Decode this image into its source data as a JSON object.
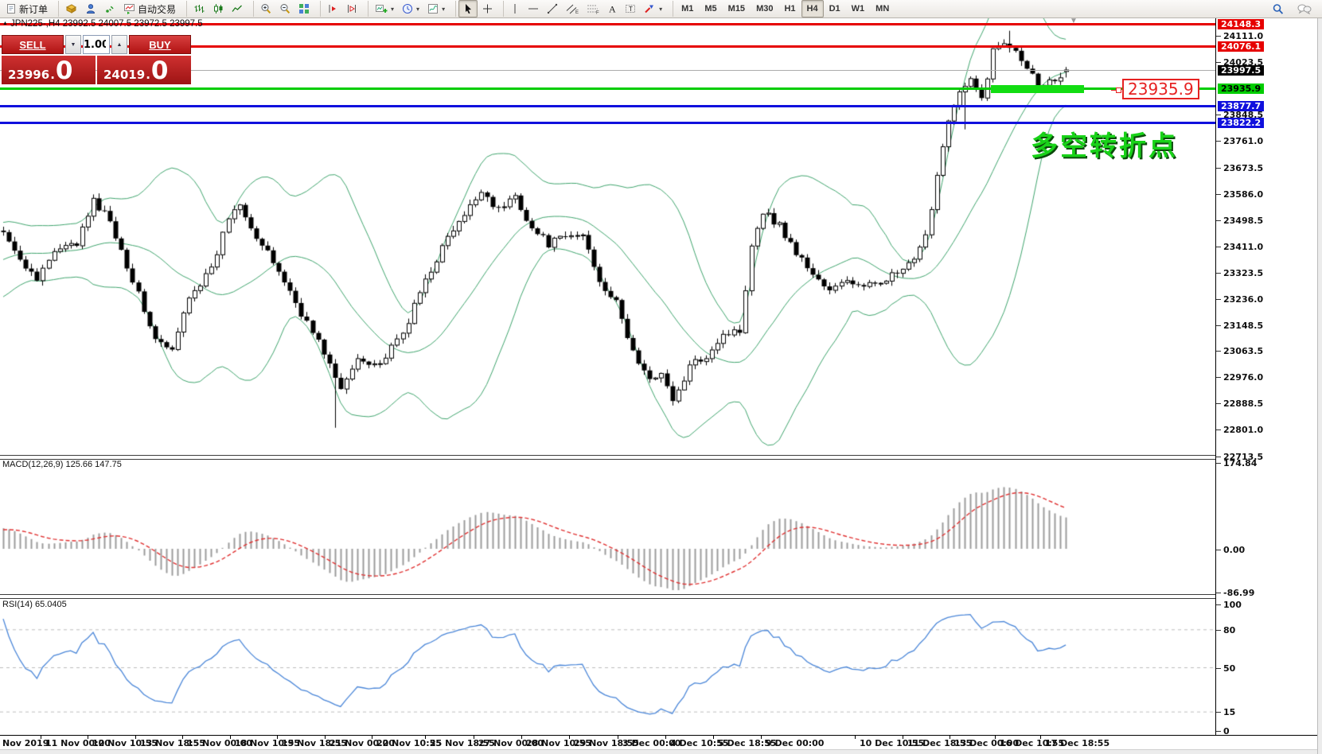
{
  "toolbar": {
    "dropdown_glyph": "▾",
    "items": [
      {
        "n": "new-order-button",
        "icon": "doc",
        "label": "新订单"
      },
      {
        "sep": true
      },
      {
        "n": "deposit-button",
        "icon": "gold"
      },
      {
        "n": "support-button",
        "icon": "person"
      },
      {
        "n": "signals-button",
        "icon": "signal"
      },
      {
        "n": "autotrading-button",
        "icon": "auto",
        "label": "自动交易"
      },
      {
        "sep": true
      },
      {
        "n": "bar-chart-button",
        "icon": "bars"
      },
      {
        "n": "candlestick-chart-button",
        "icon": "candles"
      },
      {
        "n": "line-chart-button",
        "icon": "linechart"
      },
      {
        "sep": true
      },
      {
        "n": "zoom-in-button",
        "icon": "zoomin"
      },
      {
        "n": "zoom-out-button",
        "icon": "zoomout"
      },
      {
        "n": "tile-windows-button",
        "icon": "tile"
      },
      {
        "sep": true
      },
      {
        "n": "auto-scroll-button",
        "icon": "autoscroll"
      },
      {
        "n": "chart-shift-button",
        "icon": "chartshift"
      },
      {
        "sep": true
      },
      {
        "n": "new-chart-button",
        "icon": "newchart",
        "dd": true
      },
      {
        "n": "profiles-button",
        "icon": "clock",
        "dd": true
      },
      {
        "n": "indicators-button",
        "icon": "template",
        "dd": true
      },
      {
        "sep": true
      },
      {
        "n": "cursor-tool-button",
        "icon": "cursor",
        "active": true
      },
      {
        "n": "crosshair-tool-button",
        "icon": "cross"
      },
      {
        "sep": true
      },
      {
        "n": "vertical-line-tool",
        "icon": "vline"
      },
      {
        "n": "horizontal-line-tool",
        "icon": "hline"
      },
      {
        "n": "trendline-tool",
        "icon": "tline"
      },
      {
        "n": "equidistant-channel-tool",
        "icon": "channel"
      },
      {
        "n": "fibonacci-tool",
        "icon": "fibo"
      },
      {
        "n": "text-tool",
        "icon": "textA"
      },
      {
        "n": "label-tool",
        "icon": "labelT"
      },
      {
        "n": "arrows-tool",
        "icon": "shapes",
        "dd": true
      },
      {
        "sep": true
      }
    ],
    "timeframes": [
      "M1",
      "M5",
      "M15",
      "M30",
      "H1",
      "H4",
      "D1",
      "W1",
      "MN"
    ],
    "active_timeframe": "H4",
    "right_items": [
      {
        "n": "search-button",
        "icon": "search"
      },
      {
        "n": "chat-button",
        "icon": "chat"
      }
    ]
  },
  "trade_panel": {
    "sell_label": "SELL",
    "buy_label": "BUY",
    "volume": "1.00",
    "spin_up": "▲",
    "spin_down": "▼",
    "dot": ".",
    "sell_price_main": "23996",
    "sell_price_big": "0",
    "buy_price_main": "24019",
    "buy_price_big": "0"
  },
  "chart_data": {
    "type": "candlestick",
    "symbol": "JPN225-",
    "timeframe": "H4",
    "title": "JPN225-,H4 23992.5 24007.5 23972.5 23997.5",
    "title_marker_glyph": "▲",
    "shift_marker_glyph": "▼",
    "ohlc_current": {
      "open": 23992.5,
      "high": 24007.5,
      "low": 23972.5,
      "close": 23997.5
    },
    "quotes": {
      "sell": "23996.0",
      "buy": "24019.0"
    },
    "levels": [
      {
        "price": 24148.3,
        "label": "24148.3",
        "color": "#e60000",
        "thick": 3,
        "badge": "red"
      },
      {
        "price": 24076.1,
        "label": "24076.1",
        "color": "#e60000",
        "thick": 3,
        "badge": "red"
      },
      {
        "price": 23997.5,
        "label": "23997.5",
        "color": "#ababab",
        "thick": 1,
        "badge": "black",
        "kind": "bid-line"
      },
      {
        "price": 23935.9,
        "label": "23935.9",
        "color": "#00cd00",
        "thick": 3,
        "badge": "green"
      },
      {
        "price": 23877.7,
        "label": "23877.7",
        "color": "#1010dd",
        "thick": 3,
        "badge": "blue"
      },
      {
        "price": 23822.2,
        "label": "23822.2",
        "color": "#1010dd",
        "thick": 3,
        "badge": "blue"
      }
    ],
    "support_zone": {
      "label": "23935.9",
      "price": 23935.9,
      "color": "#12dd12"
    },
    "annotation": {
      "text": "多空转折点",
      "color": "#19d219"
    },
    "y_ticks": [
      "24111.0",
      "24023.5",
      "23848.5",
      "23761.0",
      "23673.5",
      "23586.0",
      "23498.5",
      "23411.0",
      "23323.5",
      "23236.0",
      "23148.5",
      "23063.5",
      "22976.0",
      "22888.5",
      "22801.0",
      "22713.5"
    ],
    "x_labels": [
      [
        "Nov 2019",
        3
      ],
      [
        "11 Nov 00:00",
        57
      ],
      [
        "12 Nov 10:55",
        116
      ],
      [
        "13 Nov 18:55",
        176
      ],
      [
        "15 Nov 00:00",
        235
      ],
      [
        "18 Nov 10:55",
        295
      ],
      [
        "19 Nov 18:55",
        354
      ],
      [
        "21 Nov 00:00",
        414
      ],
      [
        "22 Nov 10:55",
        473
      ],
      [
        "25 Nov 18:55",
        540
      ],
      [
        "27 Nov 00:00",
        601
      ],
      [
        "28 Nov 10:55",
        661
      ],
      [
        "29 Nov 18:55",
        721
      ],
      [
        "3 Dec 00:00",
        782
      ],
      [
        "4 Dec 10:55",
        842
      ],
      [
        "5 Dec 18:55",
        902
      ],
      [
        "9 Dec 00:00",
        962
      ],
      [
        "10 Dec 10:55",
        1080
      ],
      [
        "11 Dec 18:55",
        1140
      ],
      [
        "13 Dec 00:00",
        1199
      ],
      [
        "16 Dec 10:55",
        1256
      ],
      [
        "17 Dec 18:55",
        1313
      ]
    ],
    "overlays": {
      "bollinger": {
        "period": 20,
        "deviation": 2,
        "color": "#3fa46d"
      }
    },
    "price_path": [
      [
        0,
        23470
      ],
      [
        3,
        23360
      ],
      [
        6,
        23310
      ],
      [
        9,
        23390
      ],
      [
        13,
        23420
      ],
      [
        16,
        23560
      ],
      [
        19,
        23500
      ],
      [
        23,
        23300
      ],
      [
        27,
        23100
      ],
      [
        30,
        23060
      ],
      [
        33,
        23250
      ],
      [
        37,
        23330
      ],
      [
        40,
        23510
      ],
      [
        42,
        23560
      ],
      [
        45,
        23440
      ],
      [
        49,
        23330
      ],
      [
        53,
        23190
      ],
      [
        57,
        23060
      ],
      [
        60,
        22930
      ],
      [
        63,
        23040
      ],
      [
        67,
        23020
      ],
      [
        71,
        23120
      ],
      [
        75,
        23300
      ],
      [
        79,
        23440
      ],
      [
        82,
        23510
      ],
      [
        85,
        23600
      ],
      [
        88,
        23530
      ],
      [
        91,
        23580
      ],
      [
        94,
        23470
      ],
      [
        97,
        23420
      ],
      [
        100,
        23440
      ],
      [
        103,
        23450
      ],
      [
        106,
        23300
      ],
      [
        109,
        23220
      ],
      [
        112,
        23060
      ],
      [
        115,
        22960
      ],
      [
        117,
        23000
      ],
      [
        119,
        22890
      ],
      [
        122,
        23010
      ],
      [
        125,
        23050
      ],
      [
        128,
        23120
      ],
      [
        131,
        23130
      ],
      [
        133,
        23420
      ],
      [
        135,
        23530
      ],
      [
        138,
        23480
      ],
      [
        141,
        23390
      ],
      [
        144,
        23320
      ],
      [
        147,
        23260
      ],
      [
        150,
        23300
      ],
      [
        153,
        23270
      ],
      [
        156,
        23300
      ],
      [
        159,
        23320
      ],
      [
        162,
        23360
      ],
      [
        164,
        23440
      ],
      [
        166,
        23650
      ],
      [
        168,
        23840
      ],
      [
        170,
        23920
      ],
      [
        172,
        23960
      ],
      [
        174,
        23900
      ],
      [
        176,
        24060
      ],
      [
        178,
        24090
      ],
      [
        180,
        24070
      ],
      [
        182,
        24010
      ],
      [
        184,
        23950
      ],
      [
        186,
        23960
      ],
      [
        188,
        23980
      ],
      [
        189,
        23997.5
      ]
    ],
    "wick_overrides": [
      {
        "bar": 59,
        "low": 22808
      },
      {
        "bar": 171,
        "low": 23800
      },
      {
        "bar": 179,
        "high": 24128
      }
    ],
    "macd": {
      "label": "MACD(12,26,9) 125.66 147.75",
      "params": [
        12,
        26,
        9
      ],
      "current": 125.66,
      "signal_current": 147.75,
      "axis_values": [
        174.84,
        0,
        -86.99
      ],
      "axis_labels": [
        "174.84",
        "0.00",
        "-86.99"
      ],
      "histogram_color": "#9b9b9b",
      "signal_color": "#e03232"
    },
    "rsi": {
      "label": "RSI(14) 65.0405",
      "period": 14,
      "current": 65.0405,
      "axis_values": [
        100,
        80,
        50,
        15,
        0
      ],
      "axis_labels": [
        "100",
        "80",
        "50",
        "15",
        "0"
      ],
      "level_lines": [
        80,
        50,
        15
      ],
      "line_color": "#4a86d8",
      "level_color": "#bdbdbd"
    }
  }
}
